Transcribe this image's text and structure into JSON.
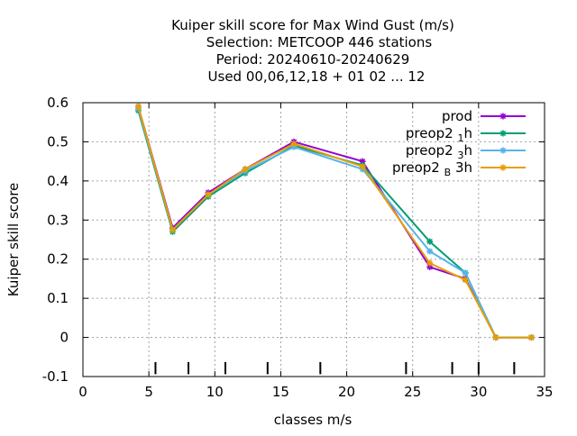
{
  "chart_data": {
    "type": "line",
    "title_lines": [
      "Kuiper skill score  for Max Wind Gust (m/s)",
      "Selection: METCOOP    446 stations",
      "Period: 20240610-20240629",
      "Used  00,06,12,18 + 01 02 ... 12"
    ],
    "xlabel": "classes m/s",
    "ylabel": "Kuiper skill score",
    "xlim": [
      0,
      35
    ],
    "ylim": [
      -0.1,
      0.6
    ],
    "xticks": [
      "0",
      "5",
      "10",
      "15",
      "20",
      "25",
      "30",
      "35"
    ],
    "yticks": [
      "-0.1",
      "0",
      "0.1",
      "0.2",
      "0.3",
      "0.4",
      "0.5",
      "0.6"
    ],
    "grid": true,
    "legend_position": "top-right",
    "class_marks": [
      5.5,
      8.0,
      10.8,
      14.0,
      18.0,
      24.5,
      28.0,
      30.0,
      32.7
    ],
    "series": [
      {
        "name": "prod",
        "legend": {
          "base": "prod",
          "sub": "",
          "tail": ""
        },
        "color": "#9400d3",
        "x": [
          4.2,
          6.8,
          9.5,
          12.3,
          16.0,
          21.2,
          26.3,
          29.0,
          31.3,
          34.0
        ],
        "y": [
          0.59,
          0.28,
          0.37,
          0.43,
          0.5,
          0.45,
          0.18,
          0.15,
          0.0,
          0.0
        ]
      },
      {
        "name": "preop2 1h",
        "legend": {
          "base": "preop2 ",
          "sub": "1",
          "tail": "h"
        },
        "color": "#009e73",
        "x": [
          4.2,
          6.8,
          9.5,
          12.3,
          16.0,
          21.2,
          26.3,
          29.0,
          31.3,
          34.0
        ],
        "y": [
          0.58,
          0.27,
          0.36,
          0.42,
          0.49,
          0.44,
          0.245,
          0.165,
          0.0,
          0.0
        ]
      },
      {
        "name": "preop2 3h",
        "legend": {
          "base": "preop2 ",
          "sub": "3",
          "tail": "h"
        },
        "color": "#56b4e9",
        "x": [
          4.2,
          6.8,
          9.5,
          12.3,
          16.0,
          21.2,
          26.3,
          29.0,
          31.3,
          34.0
        ],
        "y": [
          0.585,
          0.275,
          0.365,
          0.425,
          0.487,
          0.43,
          0.22,
          0.165,
          0.0,
          0.0
        ]
      },
      {
        "name": "preop2 B 3h",
        "legend": {
          "base": "preop2 ",
          "sub": "B",
          "tail": " 3h"
        },
        "color": "#e69f00",
        "x": [
          4.2,
          6.8,
          9.5,
          12.3,
          16.0,
          21.2,
          26.3,
          29.0,
          31.3,
          34.0
        ],
        "y": [
          0.59,
          0.275,
          0.365,
          0.43,
          0.495,
          0.437,
          0.19,
          0.147,
          0.0,
          0.0
        ]
      }
    ]
  }
}
